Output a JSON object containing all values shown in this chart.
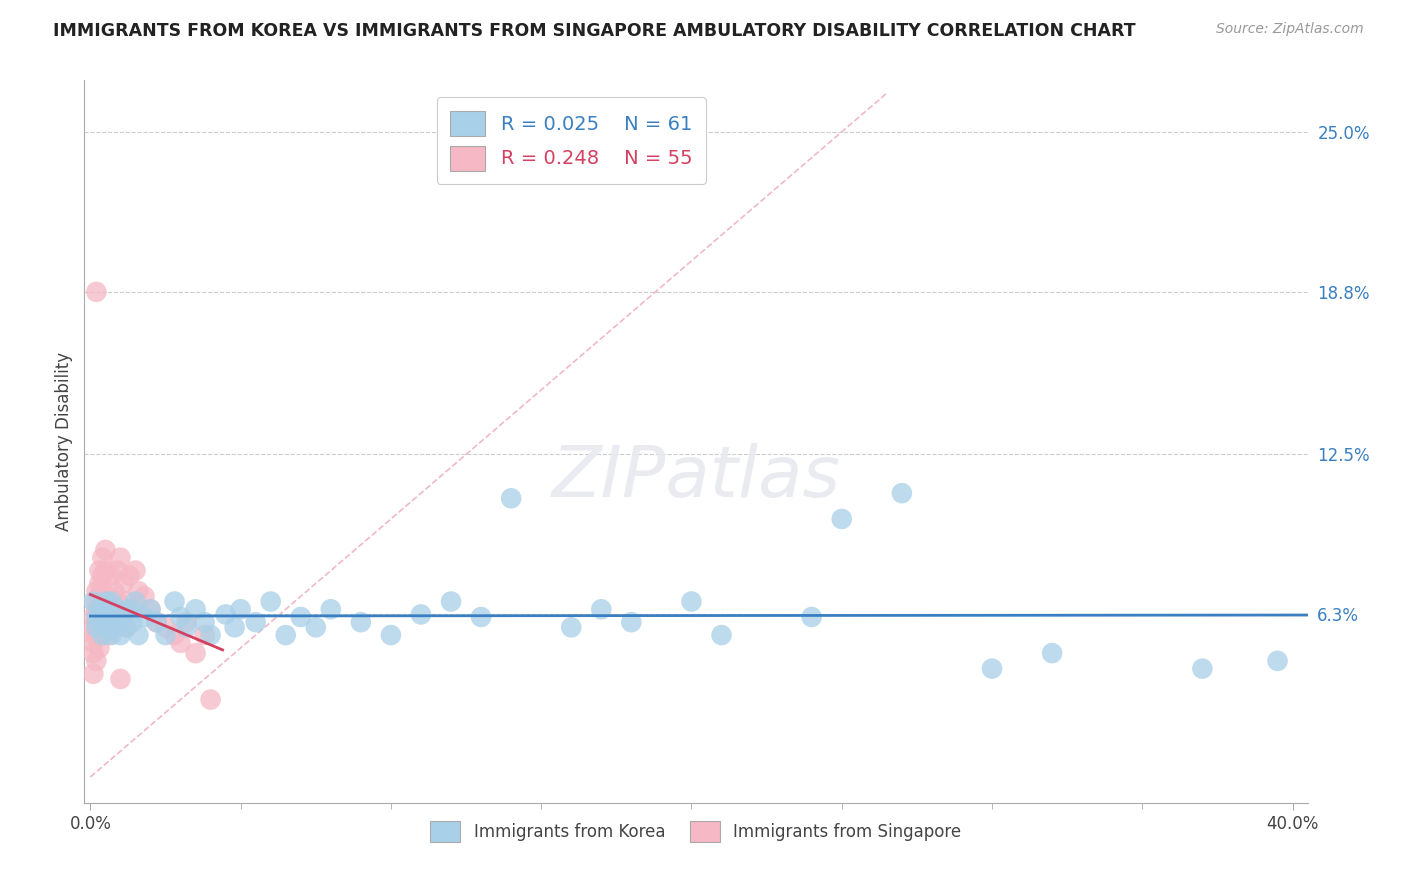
{
  "title": "IMMIGRANTS FROM KOREA VS IMMIGRANTS FROM SINGAPORE AMBULATORY DISABILITY CORRELATION CHART",
  "source": "Source: ZipAtlas.com",
  "ylabel": "Ambulatory Disability",
  "legend_korea": "Immigrants from Korea",
  "legend_singapore": "Immigrants from Singapore",
  "korea_R": "0.025",
  "korea_N": "61",
  "singapore_R": "0.248",
  "singapore_N": "55",
  "xlim": [
    -0.002,
    0.405
  ],
  "ylim": [
    -0.01,
    0.27
  ],
  "xtick_left_label": "0.0%",
  "xtick_right_label": "40.0%",
  "xtick_left": 0.0,
  "xtick_right": 0.4,
  "ytick_positions": [
    0.063,
    0.125,
    0.188,
    0.25
  ],
  "ytick_labels": [
    "6.3%",
    "12.5%",
    "18.8%",
    "25.0%"
  ],
  "color_korea": "#a8d0e8",
  "color_singapore": "#f5b8c4",
  "trendline_korea": "#3a7fc1",
  "trendline_singapore": "#d44060",
  "diag_line_color": "#f0b8c8",
  "background_color": "#ffffff",
  "korea_scatter": [
    [
      0.001,
      0.068
    ],
    [
      0.002,
      0.062
    ],
    [
      0.002,
      0.058
    ],
    [
      0.003,
      0.065
    ],
    [
      0.003,
      0.06
    ],
    [
      0.004,
      0.063
    ],
    [
      0.004,
      0.055
    ],
    [
      0.005,
      0.068
    ],
    [
      0.005,
      0.058
    ],
    [
      0.006,
      0.065
    ],
    [
      0.006,
      0.06
    ],
    [
      0.007,
      0.055
    ],
    [
      0.007,
      0.068
    ],
    [
      0.008,
      0.062
    ],
    [
      0.008,
      0.058
    ],
    [
      0.009,
      0.065
    ],
    [
      0.01,
      0.06
    ],
    [
      0.01,
      0.055
    ],
    [
      0.011,
      0.063
    ],
    [
      0.012,
      0.058
    ],
    [
      0.013,
      0.065
    ],
    [
      0.014,
      0.06
    ],
    [
      0.015,
      0.068
    ],
    [
      0.016,
      0.055
    ],
    [
      0.018,
      0.062
    ],
    [
      0.02,
      0.065
    ],
    [
      0.022,
      0.06
    ],
    [
      0.025,
      0.055
    ],
    [
      0.028,
      0.068
    ],
    [
      0.03,
      0.062
    ],
    [
      0.032,
      0.058
    ],
    [
      0.035,
      0.065
    ],
    [
      0.038,
      0.06
    ],
    [
      0.04,
      0.055
    ],
    [
      0.045,
      0.063
    ],
    [
      0.048,
      0.058
    ],
    [
      0.05,
      0.065
    ],
    [
      0.055,
      0.06
    ],
    [
      0.06,
      0.068
    ],
    [
      0.065,
      0.055
    ],
    [
      0.07,
      0.062
    ],
    [
      0.075,
      0.058
    ],
    [
      0.08,
      0.065
    ],
    [
      0.09,
      0.06
    ],
    [
      0.1,
      0.055
    ],
    [
      0.11,
      0.063
    ],
    [
      0.12,
      0.068
    ],
    [
      0.13,
      0.062
    ],
    [
      0.14,
      0.108
    ],
    [
      0.16,
      0.058
    ],
    [
      0.17,
      0.065
    ],
    [
      0.18,
      0.06
    ],
    [
      0.2,
      0.068
    ],
    [
      0.21,
      0.055
    ],
    [
      0.24,
      0.062
    ],
    [
      0.25,
      0.1
    ],
    [
      0.27,
      0.11
    ],
    [
      0.3,
      0.042
    ],
    [
      0.32,
      0.048
    ],
    [
      0.37,
      0.042
    ],
    [
      0.395,
      0.045
    ]
  ],
  "singapore_scatter": [
    [
      0.001,
      0.04
    ],
    [
      0.001,
      0.048
    ],
    [
      0.001,
      0.052
    ],
    [
      0.001,
      0.058
    ],
    [
      0.001,
      0.062
    ],
    [
      0.001,
      0.055
    ],
    [
      0.002,
      0.045
    ],
    [
      0.002,
      0.055
    ],
    [
      0.002,
      0.06
    ],
    [
      0.002,
      0.068
    ],
    [
      0.002,
      0.065
    ],
    [
      0.002,
      0.072
    ],
    [
      0.003,
      0.05
    ],
    [
      0.003,
      0.058
    ],
    [
      0.003,
      0.065
    ],
    [
      0.003,
      0.075
    ],
    [
      0.003,
      0.08
    ],
    [
      0.003,
      0.07
    ],
    [
      0.004,
      0.055
    ],
    [
      0.004,
      0.072
    ],
    [
      0.004,
      0.078
    ],
    [
      0.004,
      0.085
    ],
    [
      0.005,
      0.058
    ],
    [
      0.005,
      0.08
    ],
    [
      0.005,
      0.088
    ],
    [
      0.005,
      0.062
    ],
    [
      0.006,
      0.07
    ],
    [
      0.006,
      0.062
    ],
    [
      0.006,
      0.055
    ],
    [
      0.007,
      0.078
    ],
    [
      0.007,
      0.065
    ],
    [
      0.008,
      0.072
    ],
    [
      0.008,
      0.06
    ],
    [
      0.009,
      0.08
    ],
    [
      0.009,
      0.068
    ],
    [
      0.01,
      0.085
    ],
    [
      0.01,
      0.038
    ],
    [
      0.011,
      0.075
    ],
    [
      0.012,
      0.068
    ],
    [
      0.012,
      0.058
    ],
    [
      0.013,
      0.078
    ],
    [
      0.014,
      0.065
    ],
    [
      0.015,
      0.08
    ],
    [
      0.016,
      0.072
    ],
    [
      0.018,
      0.07
    ],
    [
      0.02,
      0.065
    ],
    [
      0.022,
      0.06
    ],
    [
      0.025,
      0.058
    ],
    [
      0.028,
      0.055
    ],
    [
      0.03,
      0.052
    ],
    [
      0.032,
      0.06
    ],
    [
      0.035,
      0.048
    ],
    [
      0.038,
      0.055
    ],
    [
      0.04,
      0.03
    ],
    [
      0.002,
      0.188
    ]
  ]
}
